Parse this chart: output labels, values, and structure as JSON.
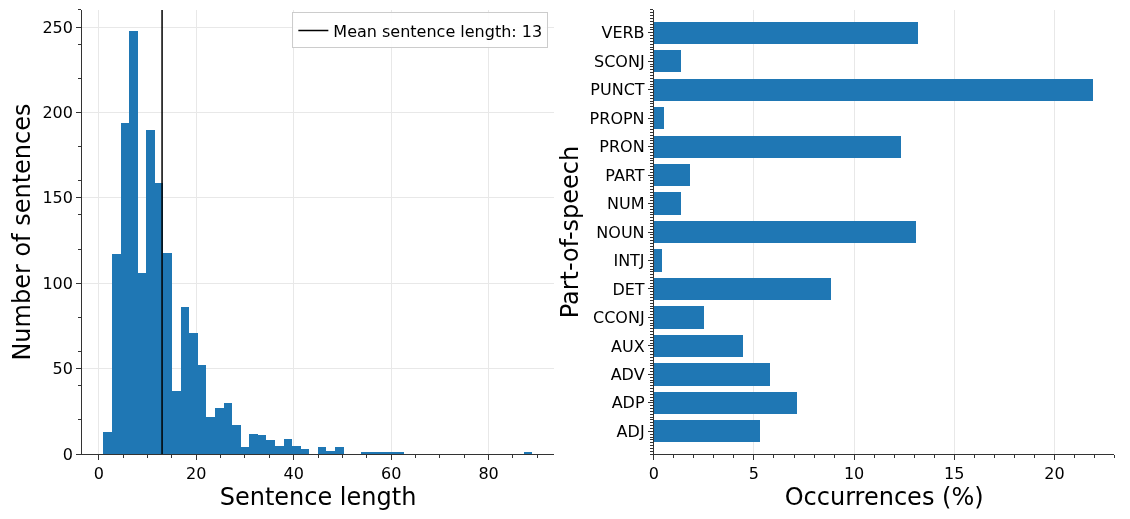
{
  "chart_data": [
    {
      "type": "histogram",
      "xlabel": "Sentence length",
      "ylabel": "Number of sentences",
      "bins": [
        1,
        2.76,
        4.52,
        6.28,
        8.04,
        9.8,
        11.56,
        13.32,
        15.08,
        16.84,
        18.6,
        20.36,
        22.12,
        23.88,
        25.64,
        27.4,
        29.16,
        30.92,
        32.68,
        34.44,
        36.2,
        37.96,
        39.72,
        41.48,
        43.24,
        45,
        46.76,
        48.52,
        50.28,
        52.04,
        53.8,
        55.56,
        57.32,
        59.08,
        60.84,
        62.6,
        64.36,
        66.12,
        67.88,
        69.64,
        71.4,
        73.16,
        74.92,
        76.68,
        78.44,
        80.2,
        81.96,
        83.72,
        85.48,
        87.24,
        89
      ],
      "values": [
        13,
        117,
        194,
        248,
        106,
        190,
        159,
        118,
        37,
        86,
        71,
        52,
        22,
        27,
        30,
        17,
        4,
        12,
        11,
        8,
        5,
        9,
        5,
        3,
        0,
        4,
        2,
        4,
        0,
        0,
        1,
        1,
        1,
        1,
        1,
        0,
        0,
        0,
        0,
        0,
        0,
        0,
        0,
        0,
        0,
        0,
        0,
        0,
        0,
        1
      ],
      "color": "#1f77b4",
      "xlim": [
        -3.4,
        93.4
      ],
      "xticks": [
        0,
        20,
        40,
        60,
        80
      ],
      "ylim": [
        0,
        260
      ],
      "yticks": [
        0,
        50,
        100,
        150,
        200,
        250
      ],
      "ref_lines": [
        {
          "axis": "x",
          "value": 13,
          "label": "Mean sentence length: 13",
          "color": "#000000"
        }
      ],
      "grid": true,
      "legend": "top right"
    },
    {
      "type": "bar",
      "orientation": "horizontal",
      "xlabel": "Occurrences (%)",
      "ylabel": "Part-of-speech",
      "categories": [
        "VERB",
        "SCONJ",
        "PUNCT",
        "PROPN",
        "PRON",
        "PART",
        "NUM",
        "NOUN",
        "INTJ",
        "DET",
        "CCONJ",
        "AUX",
        "ADV",
        "ADP",
        "ADJ"
      ],
      "values": [
        13.17,
        1.36,
        21.92,
        0.49,
        12.32,
        1.81,
        1.37,
        13.1,
        0.4,
        8.84,
        2.5,
        4.44,
        5.79,
        7.13,
        5.3
      ],
      "color": "#1f77b4",
      "xlim": [
        0,
        23
      ],
      "xticks": [
        0,
        5,
        10,
        15,
        20
      ],
      "grid": "x"
    }
  ]
}
